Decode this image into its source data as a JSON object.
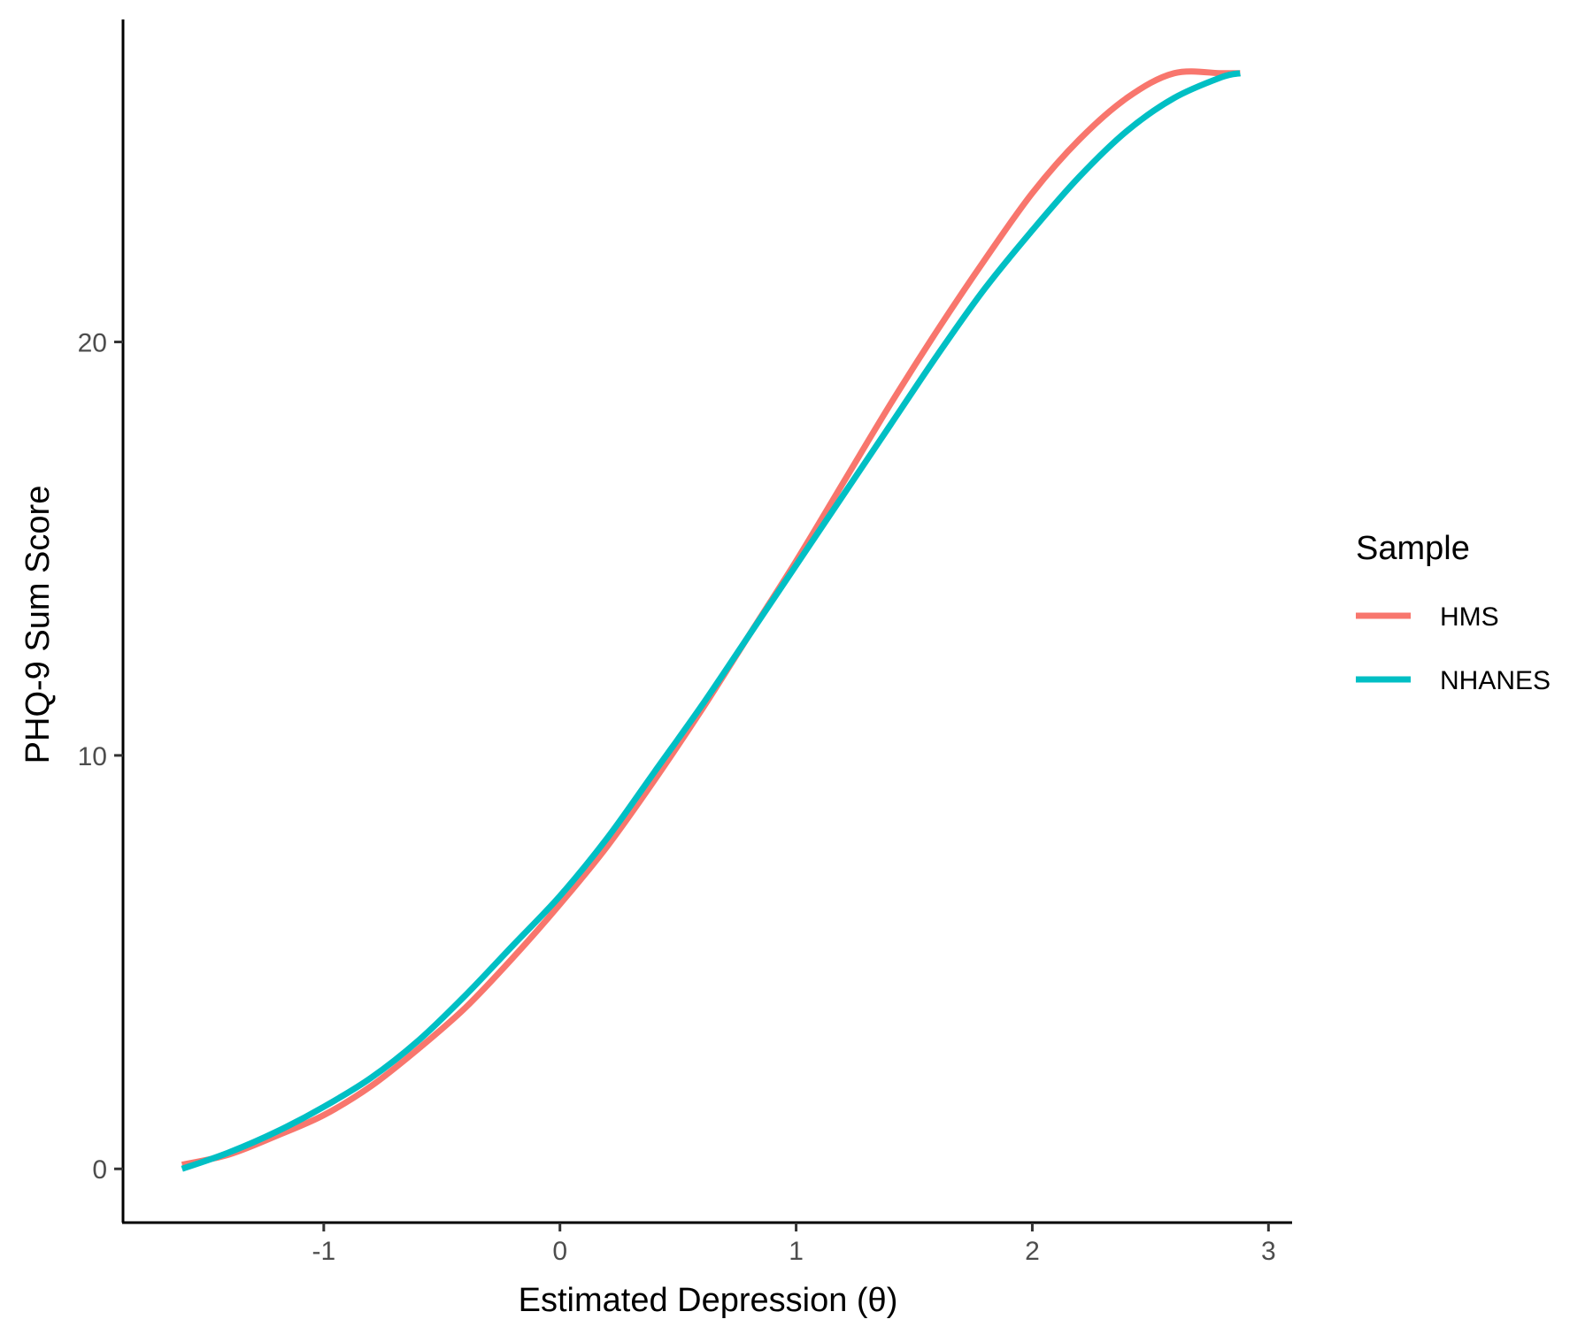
{
  "chart_data": {
    "type": "line",
    "xlabel": "Estimated Depression (θ)",
    "ylabel": "PHQ-9 Sum Score",
    "xlim": [
      -1.85,
      3.1
    ],
    "ylim": [
      -1.3,
      27.8
    ],
    "x_ticks": [
      -1,
      0,
      1,
      2,
      3
    ],
    "x_tick_labels": [
      "-1",
      "0",
      "1",
      "2",
      "3"
    ],
    "y_ticks": [
      0,
      10,
      20
    ],
    "y_tick_labels": [
      "0",
      "10",
      "20"
    ],
    "grid": false,
    "legend": {
      "title": "Sample",
      "position": "right",
      "entries": [
        "HMS",
        "NHANES"
      ]
    },
    "series": [
      {
        "name": "HMS",
        "color": "#F8766D",
        "x": [
          -1.6,
          -1.4,
          -1.2,
          -1.0,
          -0.8,
          -0.6,
          -0.4,
          -0.2,
          0.0,
          0.2,
          0.4,
          0.6,
          0.8,
          1.0,
          1.2,
          1.4,
          1.6,
          1.8,
          2.0,
          2.2,
          2.4,
          2.6,
          2.8,
          2.88
        ],
        "y": [
          0.1,
          0.35,
          0.8,
          1.3,
          2.0,
          2.9,
          3.9,
          5.1,
          6.4,
          7.8,
          9.4,
          11.1,
          12.9,
          14.7,
          16.6,
          18.5,
          20.3,
          22.0,
          23.6,
          24.9,
          25.9,
          26.5,
          26.5,
          26.5
        ]
      },
      {
        "name": "NHANES",
        "color": "#00BFC4",
        "x": [
          -1.6,
          -1.4,
          -1.2,
          -1.0,
          -0.8,
          -0.6,
          -0.4,
          -0.2,
          0.0,
          0.2,
          0.4,
          0.6,
          0.8,
          1.0,
          1.2,
          1.4,
          1.6,
          1.8,
          2.0,
          2.2,
          2.4,
          2.6,
          2.8,
          2.88
        ],
        "y": [
          0.0,
          0.4,
          0.9,
          1.5,
          2.2,
          3.1,
          4.2,
          5.4,
          6.6,
          8.0,
          9.6,
          11.2,
          12.9,
          14.6,
          16.3,
          18.0,
          19.7,
          21.3,
          22.7,
          24.0,
          25.1,
          25.9,
          26.4,
          26.5
        ]
      }
    ]
  }
}
